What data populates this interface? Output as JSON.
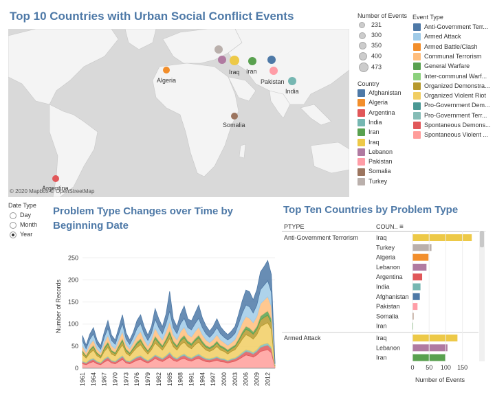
{
  "map": {
    "title": "Top 10 Countries with Urban Social Conflict Events",
    "credit": "© 2020 Mapbox © OpenStreetMap",
    "labels": [
      "Algeria",
      "Iraq",
      "Iran",
      "Pakistan",
      "India",
      "Somalia",
      "Argentina"
    ]
  },
  "size_legend": {
    "title": "Number of Events",
    "items": [
      "231",
      "300",
      "350",
      "400",
      "473"
    ]
  },
  "event_legend": {
    "title": "Event Type",
    "items": [
      {
        "label": "Anti-Government Terr...",
        "color": "#4e79a7"
      },
      {
        "label": "Armed Attack",
        "color": "#a0cbe8"
      },
      {
        "label": "Armed Battle/Clash",
        "color": "#f28e2b"
      },
      {
        "label": "Communal Terrorism",
        "color": "#ffbe7d"
      },
      {
        "label": "General Warfare",
        "color": "#59a14f"
      },
      {
        "label": "Inter-communal Warf...",
        "color": "#8cd17d"
      },
      {
        "label": "Organized Demonstra...",
        "color": "#b6992d"
      },
      {
        "label": "Organized Violent Riot",
        "color": "#f1ce63"
      },
      {
        "label": "Pro-Government Dem...",
        "color": "#499894"
      },
      {
        "label": "Pro-Government Terr...",
        "color": "#86bcb6"
      },
      {
        "label": "Spontaneous Demons...",
        "color": "#e15759"
      },
      {
        "label": "Spontaneous Violent ...",
        "color": "#ff9d9a"
      }
    ]
  },
  "country_legend": {
    "title": "Country",
    "items": [
      {
        "label": "Afghanistan",
        "color": "#4e79a7"
      },
      {
        "label": "Algeria",
        "color": "#f28e2b"
      },
      {
        "label": "Argentina",
        "color": "#e15759"
      },
      {
        "label": "India",
        "color": "#76b7b2"
      },
      {
        "label": "Iran",
        "color": "#59a14f"
      },
      {
        "label": "Iraq",
        "color": "#edc948"
      },
      {
        "label": "Lebanon",
        "color": "#b07aa1"
      },
      {
        "label": "Pakistan",
        "color": "#ff9da7"
      },
      {
        "label": "Somalia",
        "color": "#9c755f"
      },
      {
        "label": "Turkey",
        "color": "#bab0ac"
      }
    ]
  },
  "date_type": {
    "title": "Date Type",
    "options": [
      "Day",
      "Month",
      "Year"
    ],
    "selected": "Year"
  },
  "area_chart": {
    "title": "Problem Type Changes over Time by Beginning Date"
  },
  "bar_table": {
    "title": "Top Ten Countries by Problem Type",
    "col1": "PTYPE",
    "col2": "COUN..",
    "groups": [
      {
        "ptype": "Anti-Government Terrorism",
        "rows": [
          "Iraq",
          "Turkey",
          "Algeria",
          "Lebanon",
          "Argentina",
          "India",
          "Afghanistan",
          "Pakistan",
          "Somalia",
          "Iran"
        ]
      },
      {
        "ptype": "Armed Attack",
        "rows": [
          "Iraq",
          "Lebanon",
          "Iran"
        ]
      }
    ]
  },
  "chart_data": [
    {
      "type": "area",
      "title": "Problem Type Changes over Time by Beginning Date",
      "xlabel": "",
      "ylabel": "Number of Records",
      "ylim": [
        0,
        280
      ],
      "x_ticks": [
        "1961",
        "1964",
        "1967",
        "1970",
        "1973",
        "1976",
        "1979",
        "1982",
        "1985",
        "1988",
        "1991",
        "1994",
        "1997",
        "2000",
        "2003",
        "2006",
        "2009",
        "2012"
      ],
      "y_ticks": [
        0,
        50,
        100,
        150,
        200,
        250
      ],
      "x": [
        1961,
        1962,
        1963,
        1964,
        1965,
        1966,
        1967,
        1968,
        1969,
        1970,
        1971,
        1972,
        1973,
        1974,
        1975,
        1976,
        1977,
        1978,
        1979,
        1980,
        1981,
        1982,
        1983,
        1984,
        1985,
        1986,
        1987,
        1988,
        1989,
        1990,
        1991,
        1992,
        1993,
        1994,
        1995,
        1996,
        1997,
        1998,
        1999,
        2000,
        2001,
        2002,
        2003,
        2004,
        2005,
        2006,
        2007,
        2008,
        2009,
        2010,
        2011,
        2012,
        2013,
        2014
      ],
      "series": [
        {
          "name": "Spontaneous Violent Riot",
          "color": "#ff9d9a",
          "values": [
            10,
            8,
            12,
            15,
            10,
            8,
            14,
            18,
            12,
            10,
            15,
            20,
            12,
            10,
            14,
            18,
            20,
            15,
            12,
            16,
            22,
            18,
            15,
            20,
            25,
            18,
            15,
            20,
            22,
            18,
            16,
            20,
            22,
            18,
            15,
            14,
            16,
            18,
            15,
            14,
            12,
            14,
            16,
            20,
            25,
            30,
            28,
            25,
            30,
            38,
            40,
            42,
            35,
            2
          ]
        },
        {
          "name": "Spontaneous Demonstration",
          "color": "#e15759",
          "values": [
            4,
            3,
            5,
            5,
            4,
            3,
            5,
            6,
            4,
            4,
            5,
            6,
            4,
            4,
            5,
            6,
            6,
            5,
            4,
            5,
            6,
            6,
            5,
            6,
            8,
            6,
            5,
            6,
            7,
            6,
            5,
            6,
            7,
            6,
            5,
            5,
            5,
            6,
            5,
            5,
            4,
            5,
            5,
            6,
            7,
            8,
            8,
            7,
            8,
            9,
            10,
            10,
            9,
            1
          ]
        },
        {
          "name": "Pro-Government Terrorism",
          "color": "#86bcb6",
          "values": [
            2,
            2,
            3,
            3,
            2,
            2,
            3,
            3,
            2,
            2,
            3,
            3,
            2,
            2,
            3,
            3,
            3,
            3,
            2,
            3,
            3,
            3,
            3,
            3,
            4,
            3,
            3,
            3,
            4,
            3,
            3,
            3,
            4,
            3,
            3,
            3,
            3,
            3,
            3,
            3,
            2,
            3,
            3,
            3,
            4,
            4,
            4,
            4,
            4,
            5,
            5,
            5,
            4,
            0
          ]
        },
        {
          "name": "Organized Violent Riot",
          "color": "#f1ce63",
          "values": [
            15,
            10,
            14,
            18,
            12,
            10,
            16,
            20,
            14,
            12,
            18,
            24,
            16,
            12,
            16,
            20,
            24,
            18,
            14,
            18,
            26,
            22,
            18,
            24,
            30,
            22,
            18,
            24,
            26,
            22,
            20,
            24,
            26,
            22,
            18,
            16,
            18,
            22,
            18,
            16,
            14,
            16,
            18,
            24,
            30,
            34,
            32,
            30,
            34,
            42,
            44,
            46,
            40,
            2
          ]
        },
        {
          "name": "Organized Demonstration",
          "color": "#b6992d",
          "values": [
            6,
            4,
            6,
            7,
            5,
            4,
            6,
            8,
            6,
            5,
            7,
            9,
            6,
            5,
            6,
            8,
            9,
            7,
            6,
            7,
            10,
            8,
            7,
            9,
            11,
            8,
            7,
            9,
            10,
            8,
            8,
            9,
            10,
            8,
            7,
            6,
            7,
            8,
            7,
            6,
            6,
            6,
            7,
            9,
            11,
            12,
            12,
            11,
            12,
            15,
            16,
            17,
            15,
            1
          ]
        },
        {
          "name": "General Warfare",
          "color": "#59a14f",
          "values": [
            3,
            2,
            3,
            4,
            3,
            2,
            4,
            5,
            3,
            3,
            4,
            5,
            4,
            3,
            4,
            5,
            5,
            4,
            3,
            4,
            6,
            5,
            4,
            5,
            7,
            5,
            4,
            5,
            6,
            5,
            5,
            5,
            6,
            5,
            4,
            4,
            4,
            5,
            4,
            4,
            4,
            4,
            4,
            5,
            6,
            7,
            7,
            6,
            7,
            9,
            9,
            10,
            9,
            1
          ]
        },
        {
          "name": "Armed Battle/Clash",
          "color": "#ffbe7d",
          "values": [
            10,
            7,
            10,
            12,
            8,
            6,
            10,
            14,
            10,
            8,
            12,
            16,
            10,
            8,
            10,
            14,
            16,
            12,
            10,
            12,
            18,
            14,
            12,
            16,
            20,
            14,
            12,
            16,
            18,
            14,
            14,
            16,
            18,
            14,
            12,
            10,
            12,
            14,
            12,
            10,
            10,
            10,
            12,
            16,
            20,
            22,
            22,
            20,
            22,
            28,
            30,
            32,
            28,
            1
          ]
        },
        {
          "name": "Armed Attack",
          "color": "#a0cbe8",
          "values": [
            12,
            8,
            12,
            14,
            10,
            8,
            12,
            16,
            12,
            10,
            14,
            18,
            12,
            10,
            12,
            16,
            18,
            14,
            12,
            14,
            20,
            16,
            14,
            18,
            24,
            16,
            14,
            18,
            20,
            16,
            16,
            18,
            20,
            16,
            14,
            12,
            14,
            16,
            14,
            12,
            12,
            12,
            14,
            18,
            22,
            26,
            26,
            22,
            26,
            32,
            34,
            36,
            32,
            2
          ]
        },
        {
          "name": "Anti-Government Terrorism",
          "color": "#4e79a7",
          "values": [
            12,
            8,
            12,
            14,
            10,
            8,
            12,
            18,
            12,
            10,
            14,
            20,
            14,
            10,
            12,
            18,
            20,
            16,
            12,
            16,
            24,
            20,
            16,
            22,
            45,
            20,
            16,
            22,
            28,
            20,
            20,
            24,
            30,
            22,
            18,
            14,
            16,
            20,
            16,
            14,
            12,
            14,
            16,
            22,
            28,
            34,
            34,
            30,
            35,
            40,
            42,
            46,
            40,
            3
          ]
        }
      ]
    },
    {
      "type": "bar",
      "title": "Top Ten Countries by Problem Type",
      "xlabel": "Number of Events",
      "ylabel": "",
      "xlim": [
        0,
        190
      ],
      "x_ticks": [
        0,
        50,
        100,
        150
      ],
      "groups": [
        {
          "name": "Anti-Government Terrorism",
          "categories": [
            "Iraq",
            "Turkey",
            "Algeria",
            "Lebanon",
            "Argentina",
            "India",
            "Afghanistan",
            "Pakistan",
            "Somalia",
            "Iran"
          ],
          "values": [
            178,
            57,
            48,
            42,
            29,
            24,
            22,
            15,
            3,
            1
          ],
          "colors": [
            "#edc948",
            "#bab0ac",
            "#f28e2b",
            "#b07aa1",
            "#e15759",
            "#76b7b2",
            "#4e79a7",
            "#ff9da7",
            "#9c755f",
            "#59a14f"
          ]
        },
        {
          "name": "Armed Attack",
          "categories": [
            "Iraq",
            "Lebanon",
            "Iran"
          ],
          "values": [
            135,
            105,
            98
          ],
          "colors": [
            "#edc948",
            "#b07aa1",
            "#59a14f"
          ]
        }
      ]
    }
  ]
}
